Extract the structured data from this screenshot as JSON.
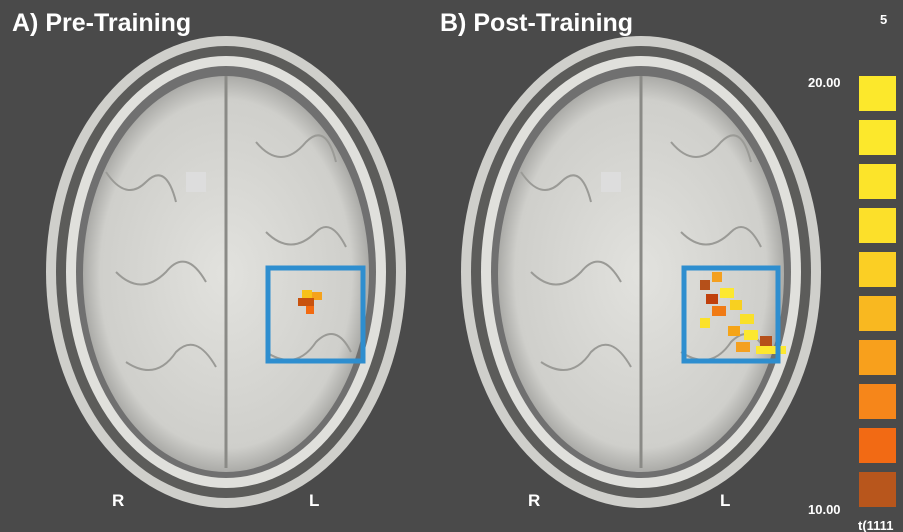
{
  "corner_label": "5",
  "panels": [
    {
      "title": "A) Pre-Training",
      "right_label": "R",
      "left_label": "L"
    },
    {
      "title": "B) Post-Training",
      "right_label": "R",
      "left_label": "L"
    }
  ],
  "colorbar": {
    "max_label": "20.00",
    "min_label": "10.00",
    "stat_label": "t(1111"
  }
}
